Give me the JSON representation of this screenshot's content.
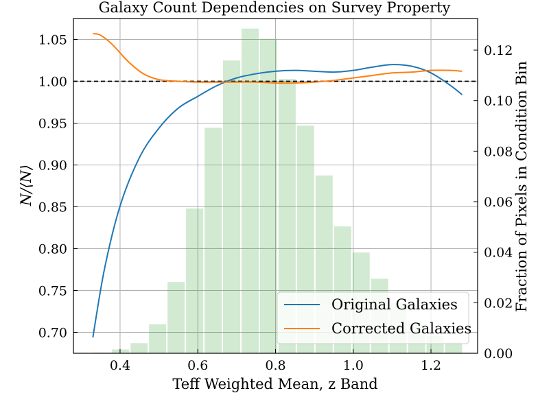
{
  "chart_data": {
    "type": "line",
    "title": "Galaxy Count Dependencies on Survey Property",
    "xlabel": "Teff Weighted Mean, z Band",
    "ylabel": "N/⟨N⟩",
    "ylabel_right": "Fraction of Pixels in Condition Bin",
    "xlim": [
      0.28,
      1.32
    ],
    "ylim": [
      0.675,
      1.075
    ],
    "ylim_right": [
      0.0,
      0.1325
    ],
    "xticks": [
      {
        "value": 0.4,
        "label": "0.4"
      },
      {
        "value": 0.6,
        "label": "0.6"
      },
      {
        "value": 0.8,
        "label": "0.8"
      },
      {
        "value": 1.0,
        "label": "1.0"
      },
      {
        "value": 1.2,
        "label": "1.2"
      }
    ],
    "yticks": [
      {
        "value": 0.7,
        "label": "0.70"
      },
      {
        "value": 0.75,
        "label": "0.75"
      },
      {
        "value": 0.8,
        "label": "0.80"
      },
      {
        "value": 0.85,
        "label": "0.85"
      },
      {
        "value": 0.9,
        "label": "0.90"
      },
      {
        "value": 0.95,
        "label": "0.95"
      },
      {
        "value": 1.0,
        "label": "1.00"
      },
      {
        "value": 1.05,
        "label": "1.05"
      }
    ],
    "yticks_right": [
      {
        "value": 0.0,
        "label": "0.00"
      },
      {
        "value": 0.02,
        "label": "0.02"
      },
      {
        "value": 0.04,
        "label": "0.04"
      },
      {
        "value": 0.06,
        "label": "0.06"
      },
      {
        "value": 0.08,
        "label": "0.08"
      },
      {
        "value": 0.1,
        "label": "0.10"
      },
      {
        "value": 0.12,
        "label": "0.12"
      }
    ],
    "grid": true,
    "reference_line": {
      "y": 1.0,
      "style": "dashed",
      "color": "#000000"
    },
    "histogram": {
      "color": "#2ca02c",
      "opacity": 0.22,
      "bin_edges": [
        0.33,
        0.3776,
        0.4252,
        0.4728,
        0.5204,
        0.568,
        0.6156,
        0.6632,
        0.7108,
        0.7584,
        0.806,
        0.8536,
        0.9012,
        0.9488,
        0.9964,
        1.044,
        1.0916,
        1.1392,
        1.1868,
        1.2344,
        1.282
      ],
      "values": [
        0.0003,
        0.0015,
        0.004,
        0.0115,
        0.0282,
        0.0573,
        0.0893,
        0.1159,
        0.1285,
        0.1245,
        0.1086,
        0.0901,
        0.0704,
        0.0502,
        0.0399,
        0.0295,
        0.0199,
        0.0117,
        0.0068,
        0.0043
      ]
    },
    "series": [
      {
        "name": "Original Galaxies",
        "color": "#1f77b4",
        "x": [
          0.33,
          0.36,
          0.4,
          0.45,
          0.5,
          0.55,
          0.6,
          0.65,
          0.7,
          0.75,
          0.8,
          0.85,
          0.9,
          0.95,
          1.0,
          1.05,
          1.1,
          1.15,
          1.2,
          1.25,
          1.28
        ],
        "y": [
          0.694,
          0.776,
          0.851,
          0.909,
          0.944,
          0.968,
          0.982,
          0.995,
          1.004,
          1.009,
          1.012,
          1.013,
          1.012,
          1.011,
          1.013,
          1.017,
          1.02,
          1.018,
          1.01,
          0.995,
          0.984
        ]
      },
      {
        "name": "Corrected Galaxies",
        "color": "#ff7f0e",
        "x": [
          0.33,
          0.35,
          0.38,
          0.42,
          0.46,
          0.5,
          0.55,
          0.6,
          0.65,
          0.7,
          0.75,
          0.8,
          0.85,
          0.9,
          0.95,
          1.0,
          1.05,
          1.1,
          1.15,
          1.2,
          1.25,
          1.28
        ],
        "y": [
          1.057,
          1.055,
          1.044,
          1.024,
          1.009,
          1.002,
          1.0,
          0.999,
          0.999,
          0.999,
          0.999,
          0.998,
          0.998,
          0.999,
          1.001,
          1.004,
          1.007,
          1.01,
          1.011,
          1.013,
          1.013,
          1.012
        ]
      }
    ],
    "legend": {
      "position": "lower-right"
    }
  }
}
